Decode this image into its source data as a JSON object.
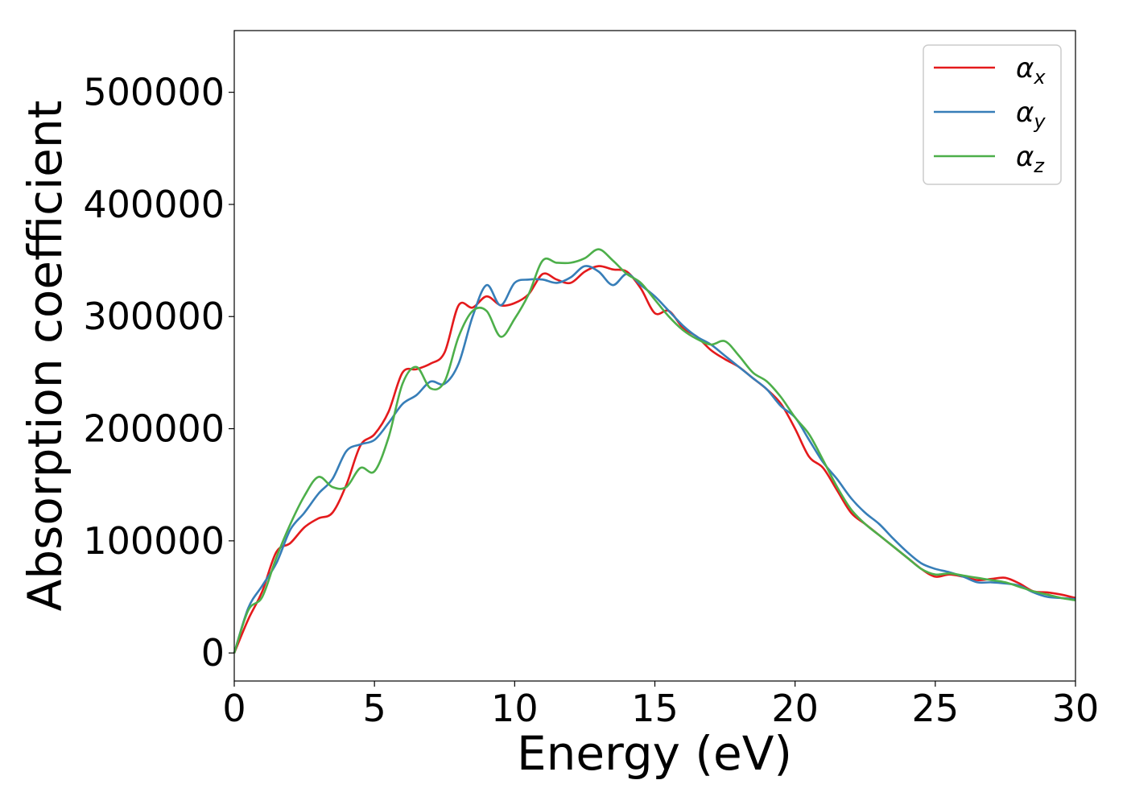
{
  "chart_data": {
    "type": "line",
    "xlabel": "Energy (eV)",
    "ylabel": "Absorption coefficient",
    "xlim": [
      0,
      30
    ],
    "ylim": [
      -25000,
      555000
    ],
    "x_ticks": [
      "0",
      "5",
      "10",
      "15",
      "20",
      "25",
      "30"
    ],
    "y_ticks": [
      "0",
      "100000",
      "200000",
      "300000",
      "400000",
      "500000"
    ],
    "grid": false,
    "legend_position": "top-right",
    "series": [
      {
        "name_base": "α",
        "name_sub": "x",
        "color": "#e41a1c",
        "x": [
          0,
          0.5,
          1,
          1.5,
          2,
          2.5,
          3,
          3.5,
          4,
          4.5,
          5,
          5.5,
          6,
          6.5,
          7,
          7.5,
          8,
          8.5,
          9,
          9.5,
          10,
          10.5,
          11,
          11.5,
          12,
          12.5,
          13,
          13.5,
          14,
          14.5,
          15,
          15.5,
          16,
          16.5,
          17,
          17.5,
          18,
          18.5,
          19,
          19.5,
          20,
          20.5,
          21,
          21.5,
          22,
          22.5,
          23,
          23.5,
          24,
          24.5,
          25,
          25.5,
          26,
          26.5,
          27,
          27.5,
          28,
          28.5,
          29,
          29.5,
          30
        ],
        "y": [
          0,
          30000,
          55000,
          90000,
          98000,
          112000,
          120000,
          125000,
          150000,
          185000,
          195000,
          215000,
          250000,
          253000,
          258000,
          268000,
          310000,
          308000,
          318000,
          310000,
          312000,
          320000,
          338000,
          333000,
          330000,
          340000,
          345000,
          342000,
          340000,
          325000,
          303000,
          305000,
          290000,
          282000,
          270000,
          262000,
          255000,
          245000,
          235000,
          222000,
          200000,
          175000,
          165000,
          145000,
          125000,
          115000,
          105000,
          95000,
          85000,
          75000,
          68000,
          70000,
          68000,
          65000,
          66000,
          67000,
          62000,
          55000,
          54000,
          52000,
          49000
        ]
      },
      {
        "name_base": "α",
        "name_sub": "y",
        "color": "#377eb8",
        "x": [
          0,
          0.5,
          1,
          1.5,
          2,
          2.5,
          3,
          3.5,
          4,
          4.5,
          5,
          5.5,
          6,
          6.5,
          7,
          7.5,
          8,
          8.5,
          9,
          9.5,
          10,
          10.5,
          11,
          11.5,
          12,
          12.5,
          13,
          13.5,
          14,
          14.5,
          15,
          15.5,
          16,
          16.5,
          17,
          17.5,
          18,
          18.5,
          19,
          19.5,
          20,
          20.5,
          21,
          21.5,
          22,
          22.5,
          23,
          23.5,
          24,
          24.5,
          25,
          25.5,
          26,
          26.5,
          27,
          27.5,
          28,
          28.5,
          29,
          29.5,
          30
        ],
        "y": [
          0,
          40000,
          60000,
          80000,
          110000,
          125000,
          142000,
          155000,
          180000,
          186000,
          190000,
          205000,
          222000,
          230000,
          242000,
          240000,
          258000,
          300000,
          328000,
          310000,
          330000,
          333000,
          333000,
          330000,
          335000,
          345000,
          340000,
          328000,
          338000,
          328000,
          318000,
          305000,
          292000,
          282000,
          275000,
          265000,
          255000,
          245000,
          235000,
          220000,
          210000,
          190000,
          170000,
          155000,
          138000,
          125000,
          115000,
          102000,
          90000,
          80000,
          75000,
          72000,
          68000,
          63000,
          63000,
          62000,
          60000,
          54000,
          50000,
          49000,
          48000
        ]
      },
      {
        "name_base": "α",
        "name_sub": "z",
        "color": "#4daf4a",
        "x": [
          0,
          0.5,
          1,
          1.5,
          2,
          2.5,
          3,
          3.5,
          4,
          4.5,
          5,
          5.5,
          6,
          6.5,
          7,
          7.5,
          8,
          8.5,
          9,
          9.5,
          10,
          10.5,
          11,
          11.5,
          12,
          12.5,
          13,
          13.5,
          14,
          14.5,
          15,
          15.5,
          16,
          16.5,
          17,
          17.5,
          18,
          18.5,
          19,
          19.5,
          20,
          20.5,
          21,
          21.5,
          22,
          22.5,
          23,
          23.5,
          24,
          24.5,
          25,
          25.5,
          26,
          26.5,
          27,
          27.5,
          28,
          28.5,
          29,
          29.5,
          30
        ],
        "y": [
          0,
          38000,
          50000,
          85000,
          115000,
          140000,
          157000,
          148000,
          148000,
          165000,
          162000,
          192000,
          240000,
          255000,
          236000,
          242000,
          282000,
          305000,
          305000,
          282000,
          298000,
          320000,
          350000,
          348000,
          348000,
          352000,
          360000,
          350000,
          338000,
          330000,
          315000,
          300000,
          288000,
          280000,
          275000,
          278000,
          265000,
          250000,
          242000,
          228000,
          210000,
          195000,
          172000,
          148000,
          128000,
          115000,
          105000,
          95000,
          85000,
          75000,
          70000,
          71000,
          69000,
          67000,
          65000,
          63000,
          59000,
          55000,
          52000,
          49000,
          47000
        ]
      }
    ]
  }
}
